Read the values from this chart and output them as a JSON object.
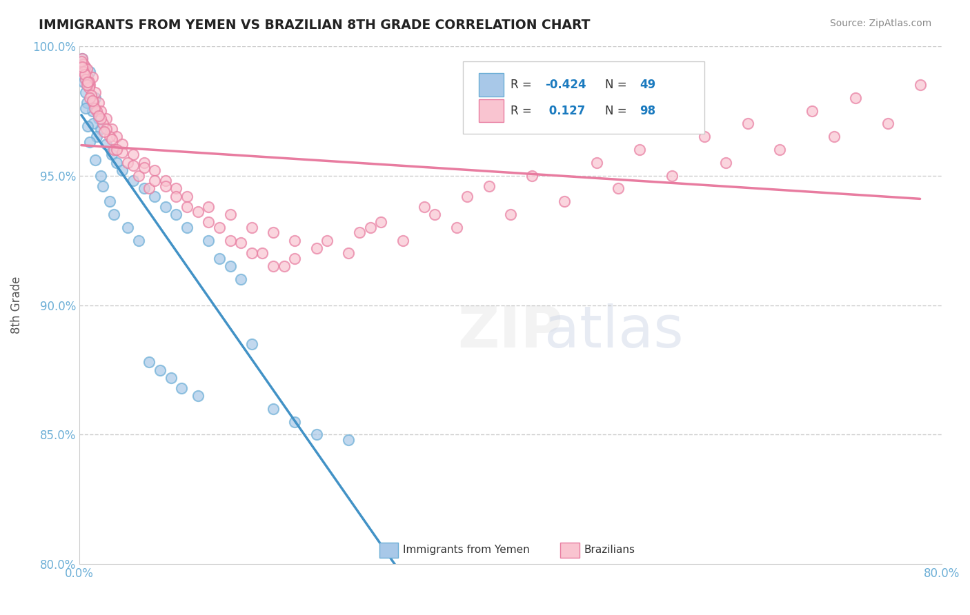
{
  "title": "IMMIGRANTS FROM YEMEN VS BRAZILIAN 8TH GRADE CORRELATION CHART",
  "source": "Source: ZipAtlas.com",
  "xlabel_bottom": "",
  "ylabel": "8th Grade",
  "x_min": 0.0,
  "x_max": 80.0,
  "y_min": 80.0,
  "y_max": 100.0,
  "x_ticks": [
    0.0,
    80.0
  ],
  "x_tick_labels": [
    "0.0%",
    "80.0%"
  ],
  "y_ticks": [
    80.0,
    85.0,
    90.0,
    95.0,
    100.0
  ],
  "y_tick_labels": [
    "80.0%",
    "85.0%",
    "90.0%",
    "95.0%",
    "100.0%"
  ],
  "legend_entries": [
    {
      "label": "Immigrants from Yemen",
      "color": "#a8c4e0",
      "R": -0.424,
      "N": 49
    },
    {
      "label": "Brazilians",
      "color": "#f4a7b9",
      "R": 0.127,
      "N": 98
    }
  ],
  "blue_color": "#6baed6",
  "pink_color": "#f4a7b9",
  "blue_edge": "#4292c6",
  "pink_edge": "#e87ca0",
  "trend_blue": "#4292c6",
  "trend_pink": "#e87ca0",
  "trend_dashed_color": "#cccccc",
  "watermark": "ZIPatlas",
  "title_fontsize": 14,
  "axis_label_color": "#6baed6",
  "legend_R_color": "#1a7abf",
  "legend_N_color": "#1a7abf",
  "blue_scatter_x": [
    0.3,
    0.5,
    0.4,
    0.8,
    1.0,
    0.6,
    0.7,
    1.2,
    1.5,
    1.8,
    2.0,
    1.3,
    1.6,
    2.5,
    3.0,
    3.5,
    4.0,
    5.0,
    6.0,
    7.0,
    8.0,
    9.0,
    10.0,
    12.0,
    13.0,
    14.0,
    15.0,
    0.2,
    0.4,
    0.6,
    0.8,
    1.0,
    1.5,
    2.0,
    2.2,
    2.8,
    3.2,
    4.5,
    5.5,
    6.5,
    7.5,
    8.5,
    9.5,
    11.0,
    16.0,
    18.0,
    20.0,
    22.0,
    25.0
  ],
  "blue_scatter_y": [
    99.5,
    99.2,
    98.8,
    98.5,
    99.0,
    98.2,
    97.8,
    97.5,
    98.0,
    97.2,
    96.8,
    97.0,
    96.5,
    96.2,
    95.8,
    95.5,
    95.2,
    94.8,
    94.5,
    94.2,
    93.8,
    93.5,
    93.0,
    92.5,
    91.8,
    91.5,
    91.0,
    99.3,
    98.6,
    97.6,
    96.9,
    96.3,
    95.6,
    95.0,
    94.6,
    94.0,
    93.5,
    93.0,
    92.5,
    87.8,
    87.5,
    87.2,
    86.8,
    86.5,
    88.5,
    86.0,
    85.5,
    85.0,
    84.8
  ],
  "pink_scatter_x": [
    0.3,
    0.5,
    0.6,
    0.8,
    1.0,
    1.2,
    0.4,
    0.7,
    0.9,
    1.5,
    1.8,
    2.0,
    2.5,
    3.0,
    3.5,
    4.0,
    5.0,
    6.0,
    7.0,
    8.0,
    9.0,
    10.0,
    12.0,
    14.0,
    16.0,
    18.0,
    20.0,
    25.0,
    30.0,
    35.0,
    40.0,
    45.0,
    50.0,
    55.0,
    60.0,
    65.0,
    70.0,
    75.0,
    0.2,
    0.4,
    0.6,
    0.9,
    1.1,
    1.3,
    1.6,
    2.2,
    2.8,
    3.2,
    4.5,
    5.5,
    6.5,
    0.5,
    0.7,
    1.0,
    1.4,
    2.0,
    2.5,
    3.0,
    4.0,
    5.0,
    7.0,
    9.0,
    11.0,
    13.0,
    15.0,
    17.0,
    19.0,
    22.0,
    26.0,
    28.0,
    32.0,
    36.0,
    38.0,
    42.0,
    48.0,
    52.0,
    58.0,
    62.0,
    68.0,
    72.0,
    78.0,
    0.3,
    0.8,
    1.2,
    1.8,
    2.3,
    3.5,
    6.0,
    8.0,
    10.0,
    12.0,
    14.0,
    16.0,
    18.0,
    20.0,
    23.0,
    27.0,
    33.0
  ],
  "pink_scatter_y": [
    99.5,
    99.2,
    99.0,
    98.8,
    98.5,
    98.8,
    99.3,
    99.1,
    98.6,
    98.2,
    97.8,
    97.5,
    97.2,
    96.8,
    96.5,
    96.2,
    95.8,
    95.5,
    95.2,
    94.8,
    94.5,
    94.2,
    93.8,
    93.5,
    93.0,
    92.8,
    92.5,
    92.0,
    92.5,
    93.0,
    93.5,
    94.0,
    94.5,
    95.0,
    95.5,
    96.0,
    96.5,
    97.0,
    99.4,
    99.0,
    98.7,
    98.4,
    98.1,
    97.8,
    97.5,
    97.0,
    96.5,
    96.0,
    95.5,
    95.0,
    94.5,
    98.9,
    98.5,
    98.0,
    97.6,
    97.2,
    96.8,
    96.4,
    95.9,
    95.4,
    94.8,
    94.2,
    93.6,
    93.0,
    92.4,
    92.0,
    91.5,
    92.2,
    92.8,
    93.2,
    93.8,
    94.2,
    94.6,
    95.0,
    95.5,
    96.0,
    96.5,
    97.0,
    97.5,
    98.0,
    98.5,
    99.2,
    98.6,
    97.9,
    97.3,
    96.7,
    96.0,
    95.3,
    94.6,
    93.8,
    93.2,
    92.5,
    92.0,
    91.5,
    91.8,
    92.5,
    93.0,
    93.5
  ]
}
